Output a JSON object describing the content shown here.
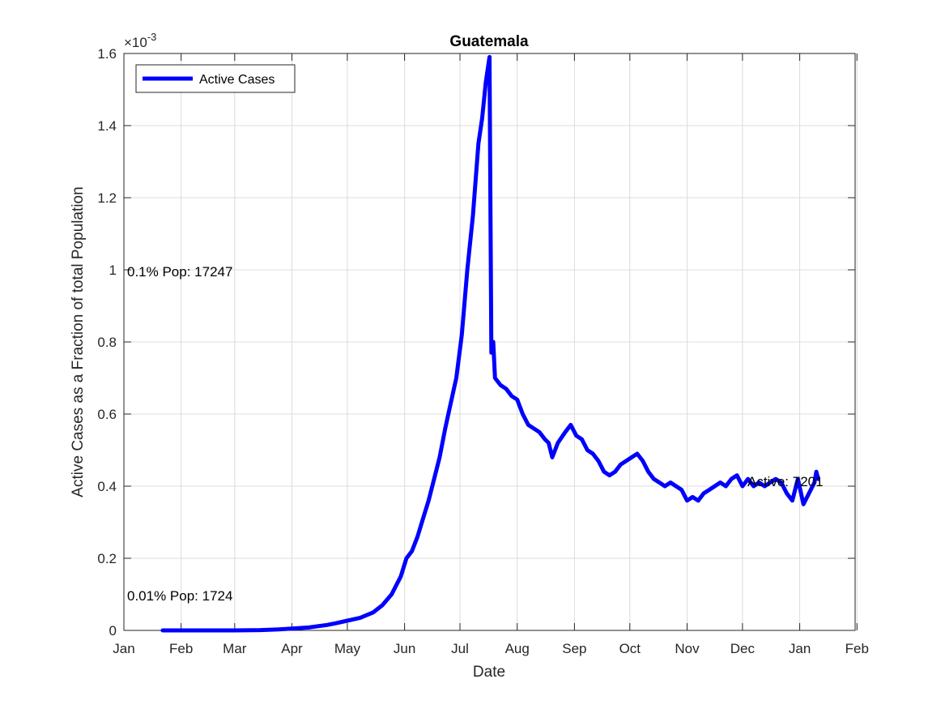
{
  "chart_data": {
    "type": "line",
    "title": "Guatemala",
    "xlabel": "Date",
    "ylabel": "Active Cases as a Fraction of total Population",
    "y_exponent_label": "×10",
    "y_exponent": "-3",
    "ylim": [
      0,
      1.6
    ],
    "yticks": [
      0,
      0.2,
      0.4,
      0.6,
      0.8,
      1,
      1.2,
      1.4,
      1.6
    ],
    "ytick_labels": [
      "0",
      "0.2",
      "0.4",
      "0.6",
      "0.8",
      "1",
      "1.2",
      "1.4",
      "1.6"
    ],
    "xticks": [
      "Jan",
      "Feb",
      "Mar",
      "Apr",
      "May",
      "Jun",
      "Jul",
      "Aug",
      "Sep",
      "Oct",
      "Nov",
      "Dec",
      "Jan",
      "Feb"
    ],
    "grid": true,
    "legend": {
      "position": "top-left",
      "entries": [
        "Active Cases"
      ]
    },
    "line_color": "#0000ff",
    "annotations": {
      "pop_01": "0.1% Pop: 17247",
      "pop_001": "0.01% Pop: 1724",
      "active": "Active: 7201"
    },
    "series": [
      {
        "name": "Active Cases",
        "points": [
          [
            "Jan 22",
            0
          ],
          [
            "Feb 1",
            0
          ],
          [
            "Feb 15",
            0
          ],
          [
            "Mar 1",
            0
          ],
          [
            "Mar 15",
            0.001
          ],
          [
            "Mar 25",
            0.003
          ],
          [
            "Apr 1",
            0.005
          ],
          [
            "Apr 10",
            0.008
          ],
          [
            "Apr 20",
            0.015
          ],
          [
            "Apr 25",
            0.02
          ],
          [
            "May 1",
            0.027
          ],
          [
            "May 8",
            0.035
          ],
          [
            "May 15",
            0.05
          ],
          [
            "May 20",
            0.07
          ],
          [
            "May 25",
            0.1
          ],
          [
            "May 30",
            0.15
          ],
          [
            "Jun 2",
            0.2
          ],
          [
            "Jun 5",
            0.22
          ],
          [
            "Jun 8",
            0.26
          ],
          [
            "Jun 11",
            0.31
          ],
          [
            "Jun 14",
            0.36
          ],
          [
            "Jun 17",
            0.42
          ],
          [
            "Jun 20",
            0.48
          ],
          [
            "Jun 23",
            0.56
          ],
          [
            "Jun 26",
            0.63
          ],
          [
            "Jun 29",
            0.7
          ],
          [
            "Jul 2",
            0.82
          ],
          [
            "Jul 5",
            1.0
          ],
          [
            "Jul 8",
            1.15
          ],
          [
            "Jul 11",
            1.35
          ],
          [
            "Jul 13",
            1.42
          ],
          [
            "Jul 15",
            1.52
          ],
          [
            "Jul 17",
            1.59
          ],
          [
            "Jul 18",
            0.77
          ],
          [
            "Jul 19",
            0.8
          ],
          [
            "Jul 20",
            0.7
          ],
          [
            "Jul 23",
            0.68
          ],
          [
            "Jul 26",
            0.67
          ],
          [
            "Jul 29",
            0.65
          ],
          [
            "Aug 1",
            0.64
          ],
          [
            "Aug 4",
            0.6
          ],
          [
            "Aug 7",
            0.57
          ],
          [
            "Aug 10",
            0.56
          ],
          [
            "Aug 13",
            0.55
          ],
          [
            "Aug 16",
            0.53
          ],
          [
            "Aug 18",
            0.52
          ],
          [
            "Aug 20",
            0.48
          ],
          [
            "Aug 23",
            0.52
          ],
          [
            "Aug 27",
            0.55
          ],
          [
            "Aug 30",
            0.57
          ],
          [
            "Sep 2",
            0.54
          ],
          [
            "Sep 5",
            0.53
          ],
          [
            "Sep 8",
            0.5
          ],
          [
            "Sep 11",
            0.49
          ],
          [
            "Sep 14",
            0.47
          ],
          [
            "Sep 17",
            0.44
          ],
          [
            "Sep 20",
            0.43
          ],
          [
            "Sep 23",
            0.44
          ],
          [
            "Sep 26",
            0.46
          ],
          [
            "Sep 29",
            0.47
          ],
          [
            "Oct 2",
            0.48
          ],
          [
            "Oct 5",
            0.49
          ],
          [
            "Oct 8",
            0.47
          ],
          [
            "Oct 11",
            0.44
          ],
          [
            "Oct 14",
            0.42
          ],
          [
            "Oct 17",
            0.41
          ],
          [
            "Oct 20",
            0.4
          ],
          [
            "Oct 23",
            0.41
          ],
          [
            "Oct 26",
            0.4
          ],
          [
            "Oct 29",
            0.39
          ],
          [
            "Nov 1",
            0.36
          ],
          [
            "Nov 4",
            0.37
          ],
          [
            "Nov 7",
            0.36
          ],
          [
            "Nov 10",
            0.38
          ],
          [
            "Nov 13",
            0.39
          ],
          [
            "Nov 16",
            0.4
          ],
          [
            "Nov 19",
            0.41
          ],
          [
            "Nov 22",
            0.4
          ],
          [
            "Nov 25",
            0.42
          ],
          [
            "Nov 28",
            0.43
          ],
          [
            "Dec 1",
            0.4
          ],
          [
            "Dec 4",
            0.42
          ],
          [
            "Dec 7",
            0.4
          ],
          [
            "Dec 10",
            0.41
          ],
          [
            "Dec 13",
            0.4
          ],
          [
            "Dec 16",
            0.41
          ],
          [
            "Dec 19",
            0.42
          ],
          [
            "Dec 22",
            0.41
          ],
          [
            "Dec 25",
            0.38
          ],
          [
            "Dec 28",
            0.36
          ],
          [
            "Dec 31",
            0.42
          ],
          [
            "Jan 3",
            0.35
          ],
          [
            "Jan 6",
            0.38
          ],
          [
            "Jan 9",
            0.41
          ],
          [
            "Jan 10",
            0.44
          ],
          [
            "Jan 11",
            0.42
          ]
        ]
      }
    ]
  }
}
